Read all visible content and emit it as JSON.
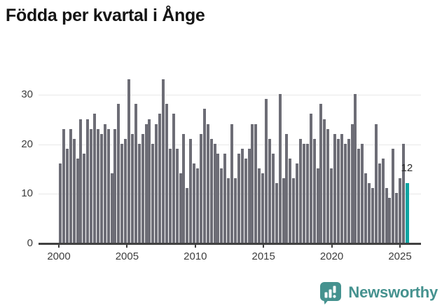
{
  "title": "Födda per kvartal i Ånge",
  "chart_data": {
    "type": "bar",
    "title": "Födda per kvartal i Ånge",
    "x_period": {
      "start": "2000 Q1",
      "end": "2025 Q2",
      "step": "quarter"
    },
    "values": [
      16,
      23,
      19,
      23,
      21,
      17,
      25,
      18,
      25,
      23,
      26,
      23,
      22,
      24,
      23,
      14,
      23,
      28,
      20,
      21,
      33,
      22,
      28,
      20,
      22,
      24,
      25,
      20,
      24,
      26,
      33,
      28,
      19,
      26,
      19,
      14,
      22,
      11,
      21,
      16,
      15,
      22,
      27,
      24,
      21,
      20,
      18,
      15,
      18,
      13,
      24,
      13,
      18,
      19,
      17,
      19,
      24,
      24,
      15,
      14,
      29,
      21,
      18,
      12,
      30,
      13,
      22,
      17,
      13,
      16,
      21,
      20,
      20,
      26,
      21,
      15,
      28,
      25,
      23,
      15,
      22,
      21,
      22,
      20,
      21,
      24,
      30,
      19,
      20,
      14,
      12,
      11,
      24,
      16,
      17,
      11,
      9,
      19,
      10,
      13,
      20,
      12
    ],
    "highlight": {
      "index": 101,
      "period": "2025 Q2",
      "value": 12,
      "label": "12"
    },
    "yticks": [
      0,
      10,
      20,
      30
    ],
    "xticks": [
      "2000",
      "2005",
      "2010",
      "2015",
      "2020",
      "2025"
    ],
    "ylim": [
      0,
      34
    ],
    "grid": true,
    "legend": false,
    "colors": {
      "bar": "#6d6d76",
      "highlight": "#0da4a2",
      "grid": "#e8e8e8",
      "axis": "#414141",
      "tick_label": "#3d3d3d",
      "title": "#141414"
    }
  },
  "footer": {
    "brand": "Newsworthy",
    "logo_color": "#45928f"
  }
}
